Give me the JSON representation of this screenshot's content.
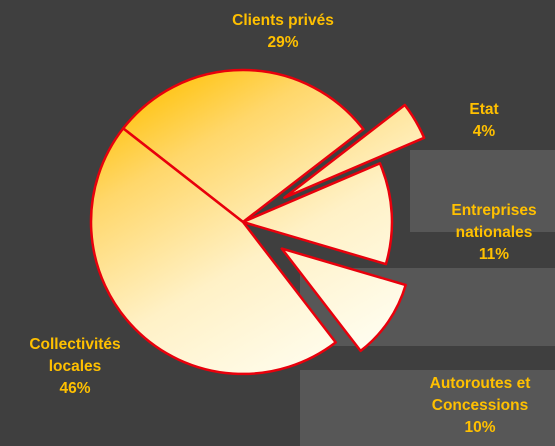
{
  "chart_data": {
    "type": "pie",
    "exploded": true,
    "slices": [
      {
        "name": "Clients privés",
        "name_lines": [
          "Clients privés"
        ],
        "value": 29,
        "value_label": "29%"
      },
      {
        "name": "Etat",
        "name_lines": [
          "Etat"
        ],
        "value": 4,
        "value_label": "4%"
      },
      {
        "name": "Entreprises nationales",
        "name_lines": [
          "Entreprises",
          "nationales"
        ],
        "value": 11,
        "value_label": "11%"
      },
      {
        "name": "Autoroutes et Concessions",
        "name_lines": [
          "Autoroutes et",
          "Concessions"
        ],
        "value": 10,
        "value_label": "10%"
      },
      {
        "name": "Collectivités locales",
        "name_lines": [
          "Collectivités",
          "locales"
        ],
        "value": 46,
        "value_label": "46%"
      }
    ],
    "colors": {
      "background": "#3f3f3f",
      "panel": "#575757",
      "slice_light": "#fffef2",
      "slice_dark": "#ffc000",
      "slice_stroke": "#e8000c",
      "label": "#ffc000"
    }
  }
}
